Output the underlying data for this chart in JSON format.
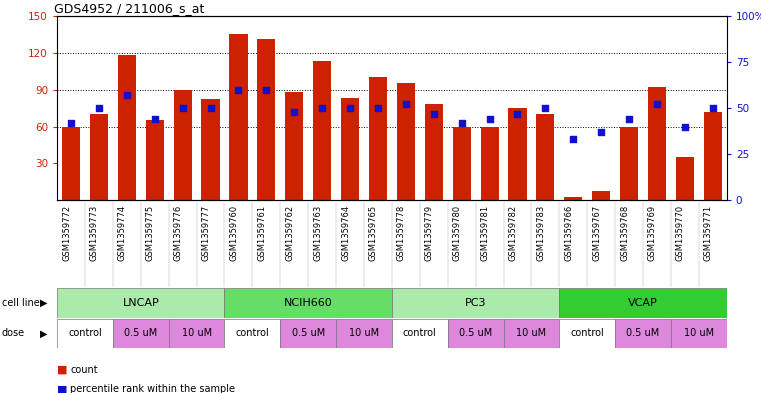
{
  "title": "GDS4952 / 211006_s_at",
  "samples": [
    "GSM1359772",
    "GSM1359773",
    "GSM1359774",
    "GSM1359775",
    "GSM1359776",
    "GSM1359777",
    "GSM1359760",
    "GSM1359761",
    "GSM1359762",
    "GSM1359763",
    "GSM1359764",
    "GSM1359765",
    "GSM1359778",
    "GSM1359779",
    "GSM1359780",
    "GSM1359781",
    "GSM1359782",
    "GSM1359783",
    "GSM1359766",
    "GSM1359767",
    "GSM1359768",
    "GSM1359769",
    "GSM1359770",
    "GSM1359771"
  ],
  "bar_values": [
    60,
    70,
    118,
    65,
    90,
    82,
    135,
    131,
    88,
    113,
    83,
    100,
    95,
    78,
    60,
    60,
    75,
    70,
    3,
    8,
    60,
    92,
    35,
    72
  ],
  "dot_values_pct": [
    42,
    50,
    57,
    44,
    50,
    50,
    60,
    60,
    48,
    50,
    50,
    50,
    52,
    47,
    42,
    44,
    47,
    50,
    33,
    37,
    44,
    52,
    40,
    50
  ],
  "cell_lines": [
    {
      "name": "LNCAP",
      "start": 0,
      "end": 6,
      "color": "#aaeaaa"
    },
    {
      "name": "NCIH660",
      "start": 6,
      "end": 12,
      "color": "#66dd66"
    },
    {
      "name": "PC3",
      "start": 12,
      "end": 18,
      "color": "#aaeaaa"
    },
    {
      "name": "VCAP",
      "start": 18,
      "end": 24,
      "color": "#33cc33"
    }
  ],
  "dose_groups": [
    {
      "name": "control",
      "start": 0,
      "end": 2,
      "color": "#ffffff"
    },
    {
      "name": "0.5 uM",
      "start": 2,
      "end": 4,
      "color": "#dd88dd"
    },
    {
      "name": "10 uM",
      "start": 4,
      "end": 6,
      "color": "#dd88dd"
    },
    {
      "name": "control",
      "start": 6,
      "end": 8,
      "color": "#ffffff"
    },
    {
      "name": "0.5 uM",
      "start": 8,
      "end": 10,
      "color": "#dd88dd"
    },
    {
      "name": "10 uM",
      "start": 10,
      "end": 12,
      "color": "#dd88dd"
    },
    {
      "name": "control",
      "start": 12,
      "end": 14,
      "color": "#ffffff"
    },
    {
      "name": "0.5 uM",
      "start": 14,
      "end": 16,
      "color": "#dd88dd"
    },
    {
      "name": "10 uM",
      "start": 16,
      "end": 18,
      "color": "#dd88dd"
    },
    {
      "name": "control",
      "start": 18,
      "end": 20,
      "color": "#ffffff"
    },
    {
      "name": "0.5 uM",
      "start": 20,
      "end": 22,
      "color": "#dd88dd"
    },
    {
      "name": "10 uM",
      "start": 22,
      "end": 24,
      "color": "#dd88dd"
    }
  ],
  "ylim_left": [
    0,
    150
  ],
  "ylim_right": [
    0,
    100
  ],
  "yticks_left": [
    30,
    60,
    90,
    120,
    150
  ],
  "yticks_right": [
    0,
    25,
    50,
    75,
    100
  ],
  "bar_color": "#cc2200",
  "dot_color": "#1111cc",
  "sample_bg_color": "#cccccc",
  "legend_count_color": "#cc2200",
  "legend_dot_color": "#1111cc"
}
